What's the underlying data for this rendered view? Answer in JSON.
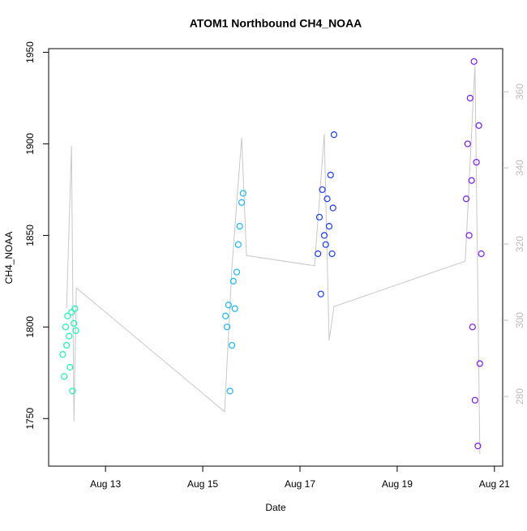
{
  "chart_data": {
    "type": "scatter",
    "title": "ATOM1 Northbound CH4_NOAA",
    "xlabel": "Date",
    "ylabel": "CH4_NOAA",
    "xlim": [
      11.83,
      21.17
    ],
    "xticks": [
      {
        "value": 13,
        "label": "Aug 13"
      },
      {
        "value": 15,
        "label": "Aug 15"
      },
      {
        "value": 17,
        "label": "Aug 17"
      },
      {
        "value": 19,
        "label": "Aug 19"
      },
      {
        "value": 21,
        "label": "Aug 21"
      }
    ],
    "ylim": [
      1724,
      1952
    ],
    "yticks": [
      1750,
      1800,
      1850,
      1900,
      1950
    ],
    "y2lim": [
      261.7,
      371.3
    ],
    "y2ticks": [
      280,
      300,
      320,
      340,
      360
    ],
    "series": [
      {
        "color": "#19F5B5",
        "x": [
          12.12,
          12.15,
          12.18,
          12.2,
          12.22,
          12.25,
          12.27,
          12.3,
          12.32,
          12.35,
          12.37,
          12.39
        ],
        "values": [
          1785,
          1773,
          1800,
          1790,
          1806,
          1795,
          1778,
          1808,
          1765,
          1802,
          1810,
          1798
        ]
      },
      {
        "color": "#19B8F5",
        "x": [
          15.47,
          15.5,
          15.53,
          15.56,
          15.6,
          15.63,
          15.66,
          15.7,
          15.73,
          15.76,
          15.8,
          15.83
        ],
        "values": [
          1806,
          1800,
          1812,
          1765,
          1790,
          1825,
          1810,
          1830,
          1845,
          1855,
          1868,
          1873
        ]
      },
      {
        "color": "#1A3DF5",
        "x": [
          17.37,
          17.4,
          17.43,
          17.46,
          17.5,
          17.53,
          17.56,
          17.6,
          17.63,
          17.66,
          17.68,
          17.7
        ],
        "values": [
          1840,
          1860,
          1818,
          1875,
          1850,
          1845,
          1870,
          1855,
          1883,
          1840,
          1865,
          1905
        ]
      },
      {
        "color": "#7A1AF5",
        "x": [
          20.42,
          20.45,
          20.48,
          20.5,
          20.53,
          20.55,
          20.58,
          20.6,
          20.63,
          20.66,
          20.68,
          20.7,
          20.73
        ],
        "values": [
          1870,
          1900,
          1850,
          1925,
          1880,
          1800,
          1945,
          1760,
          1890,
          1735,
          1910,
          1780,
          1840
        ]
      },
      {
        "color": "#c8c8c8",
        "style": "line",
        "axis": "y2",
        "x": [
          12.2,
          12.3,
          12.35,
          12.4,
          15.45,
          15.6,
          15.8,
          15.9,
          17.3,
          17.5,
          17.6,
          17.7,
          20.4,
          20.6,
          20.7
        ],
        "values": [
          303.2,
          345.8,
          273.4,
          308.5,
          276.0,
          313.8,
          347.9,
          317.0,
          314.3,
          348.9,
          294.7,
          303.6,
          315.5,
          367.0,
          264.9
        ]
      }
    ]
  }
}
